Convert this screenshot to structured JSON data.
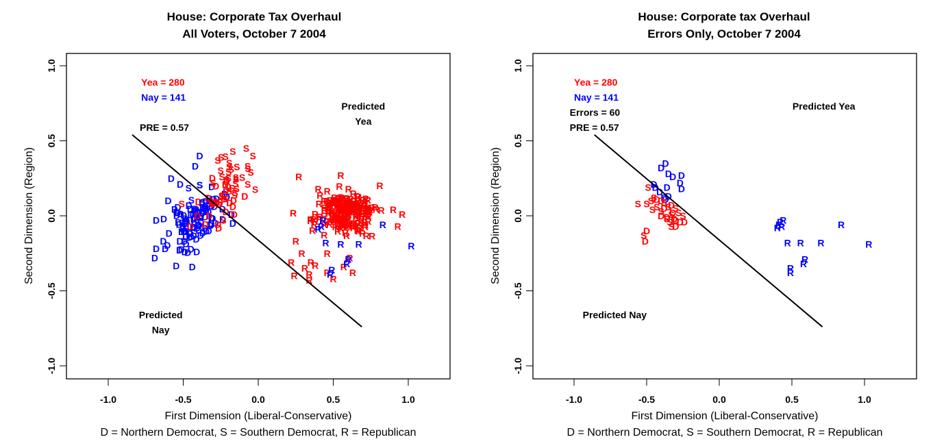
{
  "colors": {
    "yea": "#FF0000",
    "nay": "#0000FF",
    "text": "#000000"
  },
  "chart_data": [
    {
      "type": "scatter",
      "title": [
        "House: Corporate Tax Overhaul",
        "All Voters, October 7 2004"
      ],
      "xlabel": "First Dimension (Liberal-Conservative)",
      "ylabel": "Second Dimension (Region)",
      "caption": "D = Northern Democrat, S = Southern Democrat, R = Republican",
      "xlim": [
        -1.28,
        1.28
      ],
      "ylim": [
        -1.08,
        1.08
      ],
      "xticks": [
        -1.0,
        -0.5,
        0.0,
        0.5,
        1.0
      ],
      "xtick_labels": [
        "-1.0",
        "-0.5",
        "0.0",
        "0.5",
        "1.0"
      ],
      "yticks": [
        -1.0,
        -0.5,
        0.0,
        0.5,
        1.0
      ],
      "ytick_labels": [
        "-1.0",
        "-0.5",
        "0.0",
        "0.5",
        "1.0"
      ],
      "grid": false,
      "annotations": [
        {
          "text": "Yea =  280",
          "x": -0.78,
          "y": 0.89,
          "color": "yea"
        },
        {
          "text": "Nay =  141",
          "x": -0.78,
          "y": 0.79,
          "color": "nay"
        },
        {
          "text": "PRE =  0.57",
          "x": -0.79,
          "y": 0.59,
          "color": "text"
        },
        {
          "text": "Predicted",
          "x": 0.7,
          "y": 0.73,
          "color": "text",
          "anchor": "middle"
        },
        {
          "text": "Yea",
          "x": 0.7,
          "y": 0.63,
          "color": "text",
          "anchor": "middle"
        },
        {
          "text": "Predicted",
          "x": -0.65,
          "y": -0.66,
          "color": "text",
          "anchor": "middle"
        },
        {
          "text": "Nay",
          "x": -0.65,
          "y": -0.76,
          "color": "text",
          "anchor": "middle"
        }
      ],
      "cutting_line": {
        "x1": -0.84,
        "y1": 0.54,
        "x2": 0.69,
        "y2": -0.74
      },
      "vote_counts": {
        "yea": 280,
        "nay": 141,
        "pre": 0.57
      },
      "clusters": [
        {
          "label": "D",
          "vote": "nay",
          "n": 95,
          "cx": -0.42,
          "cy": -0.05,
          "sx": 0.09,
          "sy": 0.09,
          "rho": 0.55,
          "seed": 11
        },
        {
          "label": "D",
          "vote": "yea",
          "n": 25,
          "cx": -0.3,
          "cy": 0.08,
          "sx": 0.07,
          "sy": 0.08,
          "rho": 0.4,
          "seed": 12
        },
        {
          "label": "S",
          "vote": "yea",
          "n": 30,
          "cx": -0.2,
          "cy": 0.22,
          "sx": 0.07,
          "sy": 0.09,
          "rho": 0.3,
          "seed": 13
        },
        {
          "label": "S",
          "vote": "nay",
          "n": 6,
          "cx": -0.4,
          "cy": 0.14,
          "sx": 0.04,
          "sy": 0.05,
          "rho": 0.0,
          "seed": 14
        },
        {
          "label": "R",
          "vote": "yea",
          "n": 200,
          "cx": 0.58,
          "cy": 0.03,
          "sx": 0.1,
          "sy": 0.07,
          "rho": 0.0,
          "seed": 15
        }
      ],
      "points": [
        {
          "label": "S",
          "vote": "yea",
          "x": -0.17,
          "y": 0.43
        },
        {
          "label": "S",
          "vote": "yea",
          "x": -0.08,
          "y": 0.45
        },
        {
          "label": "S",
          "vote": "yea",
          "x": -0.27,
          "y": 0.37
        },
        {
          "label": "S",
          "vote": "yea",
          "x": -0.05,
          "y": 0.29
        },
        {
          "label": "S",
          "vote": "yea",
          "x": -0.07,
          "y": 0.21
        },
        {
          "label": "D",
          "vote": "yea",
          "x": -0.09,
          "y": 0.13
        },
        {
          "label": "D",
          "vote": "yea",
          "x": -0.16,
          "y": 0.01
        },
        {
          "label": "S",
          "vote": "yea",
          "x": -0.51,
          "y": 0.08
        },
        {
          "label": "D",
          "vote": "nay",
          "x": -0.39,
          "y": 0.4
        },
        {
          "label": "D",
          "vote": "nay",
          "x": -0.42,
          "y": 0.33
        },
        {
          "label": "D",
          "vote": "nay",
          "x": -0.58,
          "y": 0.25
        },
        {
          "label": "D",
          "vote": "nay",
          "x": -0.52,
          "y": 0.21
        },
        {
          "label": "D",
          "vote": "nay",
          "x": -0.6,
          "y": 0.1
        },
        {
          "label": "D",
          "vote": "nay",
          "x": -0.68,
          "y": -0.03
        },
        {
          "label": "D",
          "vote": "nay",
          "x": -0.63,
          "y": -0.02
        },
        {
          "label": "D",
          "vote": "nay",
          "x": -0.68,
          "y": -0.22
        },
        {
          "label": "D",
          "vote": "nay",
          "x": -0.62,
          "y": -0.22
        },
        {
          "label": "D",
          "vote": "nay",
          "x": -0.69,
          "y": -0.28
        },
        {
          "label": "D",
          "vote": "nay",
          "x": -0.44,
          "y": -0.34
        },
        {
          "label": "D",
          "vote": "nay",
          "x": -0.41,
          "y": -0.24
        },
        {
          "label": "D",
          "vote": "nay",
          "x": -0.17,
          "y": -0.05
        },
        {
          "label": "D",
          "vote": "nay",
          "x": -0.49,
          "y": -0.24
        },
        {
          "label": "R",
          "vote": "yea",
          "x": 0.27,
          "y": 0.26
        },
        {
          "label": "R",
          "vote": "yea",
          "x": 0.55,
          "y": 0.27
        },
        {
          "label": "R",
          "vote": "yea",
          "x": 0.81,
          "y": 0.2
        },
        {
          "label": "R",
          "vote": "yea",
          "x": 0.9,
          "y": 0.04
        },
        {
          "label": "R",
          "vote": "yea",
          "x": 0.96,
          "y": 0.01
        },
        {
          "label": "R",
          "vote": "yea",
          "x": 0.93,
          "y": -0.07
        },
        {
          "label": "R",
          "vote": "yea",
          "x": 0.25,
          "y": -0.17
        },
        {
          "label": "R",
          "vote": "yea",
          "x": 0.29,
          "y": -0.25
        },
        {
          "label": "R",
          "vote": "yea",
          "x": 0.22,
          "y": -0.31
        },
        {
          "label": "R",
          "vote": "yea",
          "x": 0.35,
          "y": -0.31
        },
        {
          "label": "R",
          "vote": "yea",
          "x": 0.38,
          "y": -0.33
        },
        {
          "label": "R",
          "vote": "yea",
          "x": 0.31,
          "y": -0.35
        },
        {
          "label": "R",
          "vote": "yea",
          "x": 0.24,
          "y": -0.4
        },
        {
          "label": "R",
          "vote": "yea",
          "x": 0.34,
          "y": -0.39
        },
        {
          "label": "R",
          "vote": "yea",
          "x": 0.46,
          "y": -0.38
        },
        {
          "label": "R",
          "vote": "yea",
          "x": 0.34,
          "y": -0.43
        },
        {
          "label": "R",
          "vote": "yea",
          "x": 0.46,
          "y": -0.25
        },
        {
          "label": "R",
          "vote": "yea",
          "x": 0.57,
          "y": -0.34
        },
        {
          "label": "R",
          "vote": "yea",
          "x": 0.63,
          "y": -0.38
        },
        {
          "label": "R",
          "vote": "yea",
          "x": 0.5,
          "y": -0.42
        },
        {
          "label": "R",
          "vote": "yea",
          "x": 0.61,
          "y": -0.28
        },
        {
          "label": "R",
          "vote": "nay",
          "x": 0.42,
          "y": -0.07
        },
        {
          "label": "R",
          "vote": "nay",
          "x": 0.43,
          "y": -0.03
        },
        {
          "label": "R",
          "vote": "nay",
          "x": 0.4,
          "y": -0.09
        },
        {
          "label": "R",
          "vote": "nay",
          "x": 0.45,
          "y": -0.18
        },
        {
          "label": "R",
          "vote": "nay",
          "x": 0.55,
          "y": -0.19
        },
        {
          "label": "R",
          "vote": "nay",
          "x": 0.67,
          "y": -0.19
        },
        {
          "label": "R",
          "vote": "nay",
          "x": 0.83,
          "y": -0.06
        },
        {
          "label": "R",
          "vote": "nay",
          "x": 1.02,
          "y": -0.2
        },
        {
          "label": "R",
          "vote": "nay",
          "x": 0.6,
          "y": -0.29
        },
        {
          "label": "R",
          "vote": "nay",
          "x": 0.59,
          "y": -0.32
        },
        {
          "label": "R",
          "vote": "nay",
          "x": 0.49,
          "y": -0.36
        },
        {
          "label": "R",
          "vote": "nay",
          "x": 0.48,
          "y": -0.39
        }
      ]
    },
    {
      "type": "scatter",
      "title": [
        "House:  Corporate tax Overhaul",
        "Errors Only, October 7 2004"
      ],
      "xlabel": "First Dimension (Liberal-Conservative)",
      "ylabel": "Second Dimension (Region)",
      "caption": "D = Northern Democrat, S = Southern Democrat, R = Republican",
      "xlim": [
        -1.28,
        1.36
      ],
      "ylim": [
        -1.08,
        1.08
      ],
      "xticks": [
        -1.0,
        -0.5,
        0.0,
        0.5,
        1.0
      ],
      "xtick_labels": [
        "-1.0",
        "-0.5",
        "0.0",
        "0.5",
        "1.0"
      ],
      "yticks": [
        -1.0,
        -0.5,
        0.0,
        0.5,
        1.0
      ],
      "ytick_labels": [
        "-1.0",
        "-0.5",
        "0.0",
        "0.5",
        "1.0"
      ],
      "grid": false,
      "annotations": [
        {
          "text": "Yea =  280",
          "x": -1.0,
          "y": 0.89,
          "color": "yea"
        },
        {
          "text": "Nay =  141",
          "x": -1.0,
          "y": 0.79,
          "color": "nay"
        },
        {
          "text": "Errors =  60",
          "x": -1.03,
          "y": 0.69,
          "color": "text"
        },
        {
          "text": "PRE =  0.57",
          "x": -1.03,
          "y": 0.59,
          "color": "text"
        },
        {
          "text": "Predicted Yea",
          "x": 0.72,
          "y": 0.73,
          "color": "text",
          "anchor": "middle"
        },
        {
          "text": "Predicted Nay",
          "x": -0.72,
          "y": -0.66,
          "color": "text",
          "anchor": "middle"
        }
      ],
      "cutting_line": {
        "x1": -0.86,
        "y1": 0.54,
        "x2": 0.71,
        "y2": -0.74
      },
      "vote_counts": {
        "yea": 280,
        "nay": 141,
        "errors": 60,
        "pre": 0.57
      },
      "clusters": [],
      "points": [
        {
          "label": "D",
          "vote": "nay",
          "x": -0.37,
          "y": 0.35
        },
        {
          "label": "D",
          "vote": "nay",
          "x": -0.4,
          "y": 0.32
        },
        {
          "label": "D",
          "vote": "nay",
          "x": -0.35,
          "y": 0.28
        },
        {
          "label": "D",
          "vote": "nay",
          "x": -0.32,
          "y": 0.26
        },
        {
          "label": "D",
          "vote": "nay",
          "x": -0.26,
          "y": 0.27
        },
        {
          "label": "D",
          "vote": "nay",
          "x": -0.27,
          "y": 0.22
        },
        {
          "label": "D",
          "vote": "nay",
          "x": -0.26,
          "y": 0.18
        },
        {
          "label": "D",
          "vote": "nay",
          "x": -0.45,
          "y": 0.21
        },
        {
          "label": "D",
          "vote": "nay",
          "x": -0.44,
          "y": 0.19
        },
        {
          "label": "D",
          "vote": "nay",
          "x": -0.36,
          "y": 0.19
        },
        {
          "label": "D",
          "vote": "nay",
          "x": -0.41,
          "y": 0.16
        },
        {
          "label": "D",
          "vote": "nay",
          "x": -0.38,
          "y": 0.12
        },
        {
          "label": "D",
          "vote": "nay",
          "x": -0.35,
          "y": 0.13
        },
        {
          "label": "D",
          "vote": "nay",
          "x": -0.37,
          "y": 0.11
        },
        {
          "label": "S",
          "vote": "yea",
          "x": -0.49,
          "y": 0.19
        },
        {
          "label": "S",
          "vote": "yea",
          "x": -0.56,
          "y": 0.08
        },
        {
          "label": "S",
          "vote": "yea",
          "x": -0.5,
          "y": 0.08
        },
        {
          "label": "S",
          "vote": "yea",
          "x": -0.47,
          "y": 0.1
        },
        {
          "label": "S",
          "vote": "yea",
          "x": -0.45,
          "y": 0.12
        },
        {
          "label": "D",
          "vote": "yea",
          "x": -0.43,
          "y": 0.11
        },
        {
          "label": "D",
          "vote": "yea",
          "x": -0.4,
          "y": 0.1
        },
        {
          "label": "S",
          "vote": "yea",
          "x": -0.38,
          "y": 0.09
        },
        {
          "label": "S",
          "vote": "yea",
          "x": -0.46,
          "y": 0.04
        },
        {
          "label": "S",
          "vote": "yea",
          "x": -0.4,
          "y": 0.03
        },
        {
          "label": "D",
          "vote": "yea",
          "x": -0.38,
          "y": 0.05
        },
        {
          "label": "S",
          "vote": "yea",
          "x": -0.35,
          "y": 0.06
        },
        {
          "label": "D",
          "vote": "yea",
          "x": -0.33,
          "y": 0.07
        },
        {
          "label": "S",
          "vote": "yea",
          "x": -0.3,
          "y": 0.05
        },
        {
          "label": "D",
          "vote": "yea",
          "x": -0.4,
          "y": 0.0
        },
        {
          "label": "D",
          "vote": "yea",
          "x": -0.36,
          "y": -0.01
        },
        {
          "label": "S",
          "vote": "yea",
          "x": -0.33,
          "y": 0.01
        },
        {
          "label": "D",
          "vote": "yea",
          "x": -0.31,
          "y": -0.02
        },
        {
          "label": "S",
          "vote": "yea",
          "x": -0.28,
          "y": 0.02
        },
        {
          "label": "S",
          "vote": "yea",
          "x": -0.34,
          "y": -0.04
        },
        {
          "label": "D",
          "vote": "yea",
          "x": -0.3,
          "y": -0.03
        },
        {
          "label": "D",
          "vote": "yea",
          "x": -0.27,
          "y": -0.04
        },
        {
          "label": "S",
          "vote": "yea",
          "x": -0.25,
          "y": 0.0
        },
        {
          "label": "D",
          "vote": "yea",
          "x": -0.24,
          "y": -0.04
        },
        {
          "label": "S",
          "vote": "yea",
          "x": -0.33,
          "y": -0.07
        },
        {
          "label": "D",
          "vote": "yea",
          "x": -0.3,
          "y": -0.07
        },
        {
          "label": "D",
          "vote": "yea",
          "x": -0.5,
          "y": -0.1
        },
        {
          "label": "S",
          "vote": "yea",
          "x": -0.52,
          "y": -0.13
        },
        {
          "label": "D",
          "vote": "yea",
          "x": -0.51,
          "y": -0.17
        },
        {
          "label": "S",
          "vote": "yea",
          "x": -0.36,
          "y": -0.02
        },
        {
          "label": "D",
          "vote": "yea",
          "x": -0.32,
          "y": 0.02
        },
        {
          "label": "S",
          "vote": "yea",
          "x": -0.43,
          "y": 0.06
        },
        {
          "label": "R",
          "vote": "nay",
          "x": 0.41,
          "y": -0.06
        },
        {
          "label": "R",
          "vote": "nay",
          "x": 0.42,
          "y": -0.04
        },
        {
          "label": "R",
          "vote": "nay",
          "x": 0.44,
          "y": -0.03
        },
        {
          "label": "R",
          "vote": "nay",
          "x": 0.4,
          "y": -0.08
        },
        {
          "label": "R",
          "vote": "nay",
          "x": 0.43,
          "y": -0.07
        },
        {
          "label": "R",
          "vote": "nay",
          "x": 0.47,
          "y": -0.18
        },
        {
          "label": "R",
          "vote": "nay",
          "x": 0.56,
          "y": -0.18
        },
        {
          "label": "R",
          "vote": "nay",
          "x": 0.7,
          "y": -0.18
        },
        {
          "label": "R",
          "vote": "nay",
          "x": 0.84,
          "y": -0.06
        },
        {
          "label": "R",
          "vote": "nay",
          "x": 1.03,
          "y": -0.19
        },
        {
          "label": "R",
          "vote": "nay",
          "x": 0.59,
          "y": -0.29
        },
        {
          "label": "R",
          "vote": "nay",
          "x": 0.58,
          "y": -0.32
        },
        {
          "label": "R",
          "vote": "nay",
          "x": 0.49,
          "y": -0.35
        },
        {
          "label": "R",
          "vote": "nay",
          "x": 0.49,
          "y": -0.38
        }
      ]
    }
  ]
}
